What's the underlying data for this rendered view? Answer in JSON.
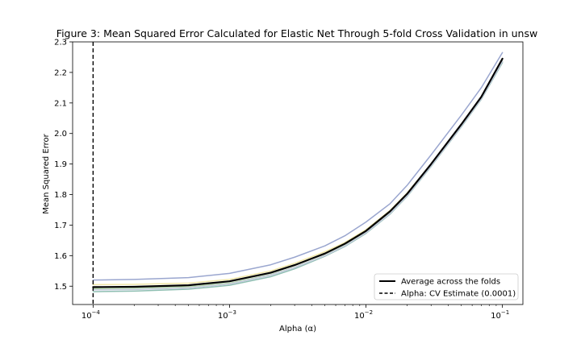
{
  "chart_data": {
    "type": "line",
    "title": "Figure 3: Mean Squared Error Calculated for Elastic Net Through 5-fold Cross Validation in unsw",
    "xlabel": "Alpha (α)",
    "ylabel": "Mean Squared Error",
    "xscale": "log",
    "xlim": [
      0.0001,
      0.1
    ],
    "ylim": [
      1.44,
      2.3
    ],
    "x_ticks": [
      {
        "value": 0.0001,
        "base": "10",
        "exp": "−4"
      },
      {
        "value": 0.001,
        "base": "10",
        "exp": "−3"
      },
      {
        "value": 0.01,
        "base": "10",
        "exp": "−2"
      },
      {
        "value": 0.1,
        "base": "10",
        "exp": "−1"
      }
    ],
    "y_ticks": [
      1.5,
      1.6,
      1.7,
      1.8,
      1.9,
      2.0,
      2.1,
      2.2,
      2.3
    ],
    "y_tick_labels": [
      "1.5",
      "1.6",
      "1.7",
      "1.8",
      "1.9",
      "2.0",
      "2.1",
      "2.2",
      "2.3"
    ],
    "x": [
      0.0001,
      0.0002,
      0.0005,
      0.001,
      0.002,
      0.003,
      0.005,
      0.007,
      0.01,
      0.015,
      0.02,
      0.03,
      0.05,
      0.07,
      0.1
    ],
    "series": [
      {
        "role": "fold",
        "color": "#9aa6cf",
        "values": [
          1.52,
          1.522,
          1.528,
          1.542,
          1.57,
          1.595,
          1.632,
          1.665,
          1.71,
          1.77,
          1.83,
          1.93,
          2.06,
          2.15,
          2.265
        ]
      },
      {
        "role": "fold",
        "color": "#f0e7a8",
        "values": [
          1.505,
          1.506,
          1.51,
          1.522,
          1.55,
          1.575,
          1.613,
          1.643,
          1.685,
          1.748,
          1.805,
          1.9,
          2.03,
          2.12,
          2.235
        ]
      },
      {
        "role": "fold",
        "color": "#b8d9b0",
        "values": [
          1.492,
          1.493,
          1.498,
          1.51,
          1.538,
          1.562,
          1.601,
          1.634,
          1.676,
          1.74,
          1.798,
          1.895,
          2.025,
          2.115,
          2.238
        ]
      },
      {
        "role": "fold",
        "color": "#8fbfb2",
        "values": [
          1.482,
          1.484,
          1.49,
          1.503,
          1.531,
          1.557,
          1.598,
          1.63,
          1.673,
          1.736,
          1.794,
          1.892,
          2.022,
          2.112,
          2.232
        ]
      },
      {
        "role": "fold",
        "color": "#c8cce0",
        "values": [
          1.488,
          1.489,
          1.494,
          1.507,
          1.536,
          1.561,
          1.6,
          1.632,
          1.675,
          1.738,
          1.796,
          1.894,
          2.024,
          2.114,
          2.236
        ]
      },
      {
        "name": "Average across the folds",
        "role": "average",
        "color": "#000000",
        "values": [
          1.497,
          1.498,
          1.503,
          1.516,
          1.544,
          1.569,
          1.607,
          1.639,
          1.681,
          1.745,
          1.802,
          1.9,
          2.03,
          2.12,
          2.245
        ]
      }
    ],
    "vline": {
      "x": 0.0001,
      "style": "dashed",
      "label": "Alpha: CV Estimate (0.0001)"
    },
    "legend": {
      "position": "lower-right",
      "entries": [
        {
          "label": "Average across the folds",
          "style": "solid"
        },
        {
          "label": "Alpha: CV Estimate (0.0001)",
          "style": "dashed"
        }
      ]
    },
    "grid": false
  }
}
